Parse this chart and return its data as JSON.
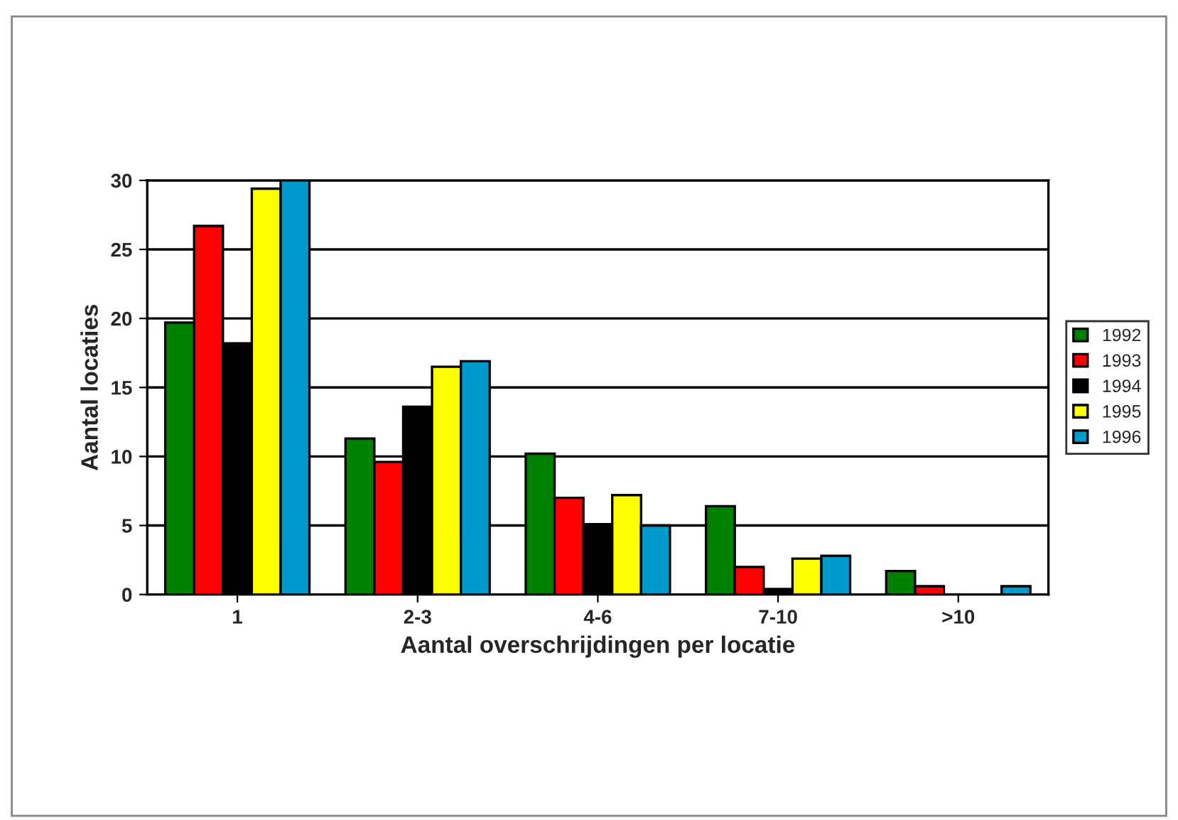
{
  "chart_data": {
    "type": "bar",
    "xlabel": "Aantal overschrijdingen per locatie",
    "ylabel": "Aantal locaties",
    "categories": [
      "1",
      "2-3",
      "4-6",
      "7-10",
      ">10"
    ],
    "series": [
      {
        "name": "1992",
        "color": "#008000",
        "values": [
          19.7,
          11.3,
          10.2,
          6.4,
          1.7
        ]
      },
      {
        "name": "1993",
        "color": "#ff0000",
        "values": [
          26.7,
          9.6,
          7.0,
          2.0,
          0.6
        ]
      },
      {
        "name": "1994",
        "color": "#000000",
        "values": [
          18.2,
          13.6,
          5.1,
          0.4,
          0
        ]
      },
      {
        "name": "1995",
        "color": "#ffff00",
        "values": [
          29.4,
          16.5,
          7.2,
          2.6,
          0
        ]
      },
      {
        "name": "1996",
        "color": "#0099cc",
        "values": [
          30,
          16.9,
          5.0,
          2.8,
          0.6
        ]
      }
    ],
    "ylim": [
      0,
      30
    ],
    "yticks": [
      0,
      5,
      10,
      15,
      20,
      25,
      30
    ],
    "grid": "y",
    "legend": "right"
  }
}
